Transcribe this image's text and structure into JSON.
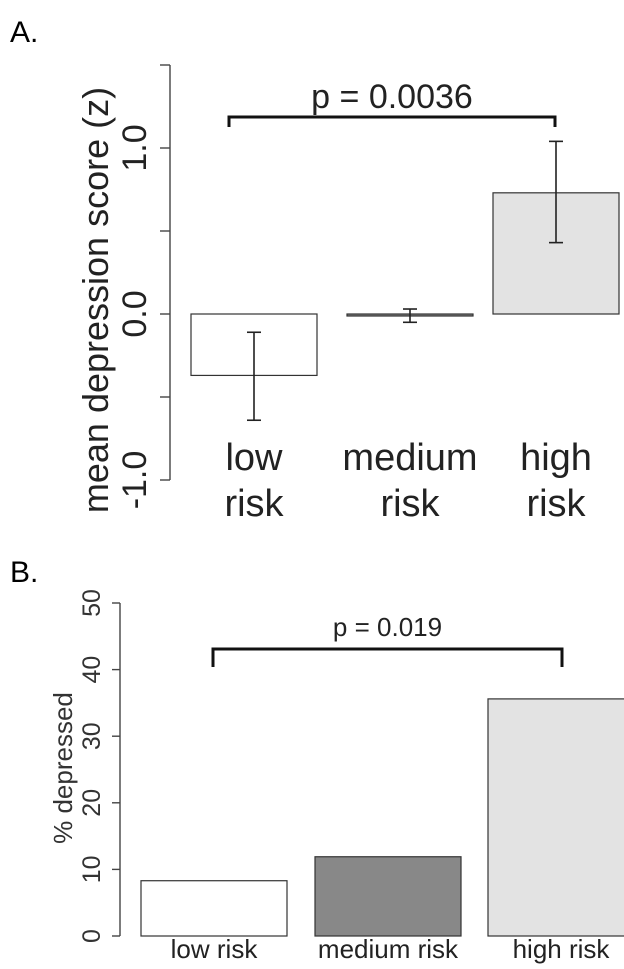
{
  "chart_data": [
    {
      "panel": "A.",
      "type": "bar",
      "ylabel": "mean depression score (z)",
      "categories": [
        [
          "low",
          "risk"
        ],
        [
          "medium",
          "risk"
        ],
        [
          "high",
          "risk"
        ]
      ],
      "values": [
        -0.37,
        -0.01,
        0.73
      ],
      "errors": [
        [
          -0.64,
          -0.11
        ],
        [
          -0.05,
          0.03
        ],
        [
          0.43,
          1.04
        ]
      ],
      "colors": [
        "#ffffff",
        "#888888",
        "#e3e3e3"
      ],
      "ylim": [
        -1.0,
        1.5
      ],
      "yticks": [
        -1.0,
        -0.5,
        0.0,
        0.5,
        1.0,
        1.5
      ],
      "ytick_labels": [
        "-1.0",
        "",
        "0.0",
        "",
        "1.0",
        ""
      ],
      "annotation": {
        "text": "p = 0.0036",
        "from": 0,
        "to": 2
      }
    },
    {
      "panel": "B.",
      "type": "bar",
      "ylabel": "% depressed",
      "categories": [
        "low risk",
        "medium risk",
        "high risk"
      ],
      "values": [
        8.3,
        11.9,
        35.6
      ],
      "colors": [
        "#ffffff",
        "#888888",
        "#e3e3e3"
      ],
      "ylim": [
        0,
        50
      ],
      "yticks": [
        0,
        10,
        20,
        30,
        40,
        50
      ],
      "ytick_labels": [
        "0",
        "10",
        "20",
        "30",
        "40",
        "50"
      ],
      "annotation": {
        "text": "p = 0.019",
        "from": 0,
        "to": 2
      }
    }
  ]
}
